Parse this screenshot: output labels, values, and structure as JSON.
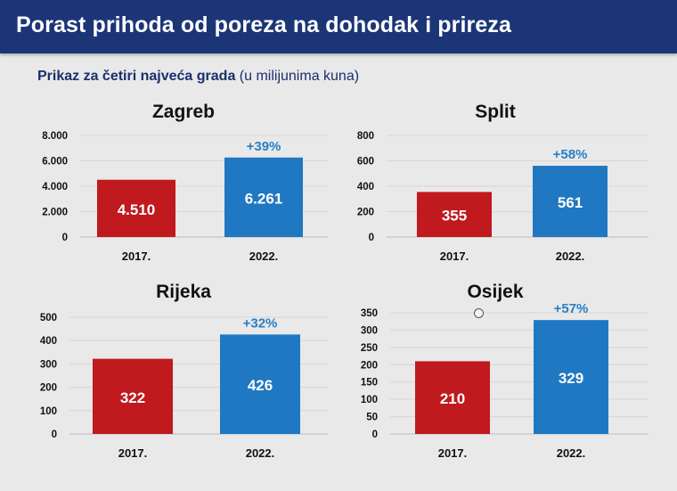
{
  "header": {
    "title": "Porast prihoda od poreza na dohodak i prireza"
  },
  "subtitle": {
    "bold": "Prikaz za četiri najveća grada",
    "normal": " (u milijunima kuna)"
  },
  "colors": {
    "header_bg": "#1b3577",
    "bar_2017": "#c0191e",
    "bar_2022": "#1f78c1",
    "growth_label": "#2a7fc4"
  },
  "chart_data": [
    {
      "type": "bar",
      "title": "Zagreb",
      "categories": [
        "2017.",
        "2022."
      ],
      "values": [
        4510,
        6261
      ],
      "value_labels": [
        "4.510",
        "6.261"
      ],
      "growth_label": "+39%",
      "yticks": [
        "0",
        "2.000",
        "4.000",
        "6.000",
        "8.000"
      ],
      "tick_values": [
        0,
        2000,
        4000,
        6000,
        8000
      ],
      "ylim": [
        0,
        8000
      ],
      "grid": true
    },
    {
      "type": "bar",
      "title": "Split",
      "categories": [
        "2017.",
        "2022."
      ],
      "values": [
        355,
        561
      ],
      "value_labels": [
        "355",
        "561"
      ],
      "growth_label": "+58%",
      "yticks": [
        "0",
        "200",
        "400",
        "600",
        "800"
      ],
      "tick_values": [
        0,
        200,
        400,
        600,
        800
      ],
      "ylim": [
        0,
        800
      ],
      "grid": true
    },
    {
      "type": "bar",
      "title": "Rijeka",
      "categories": [
        "2017.",
        "2022."
      ],
      "values": [
        322,
        426
      ],
      "value_labels": [
        "322",
        "426"
      ],
      "growth_label": "+32%",
      "yticks": [
        "0",
        "100",
        "200",
        "300",
        "400",
        "500"
      ],
      "tick_values": [
        0,
        100,
        200,
        300,
        400,
        500
      ],
      "ylim": [
        0,
        500
      ],
      "grid": true
    },
    {
      "type": "bar",
      "title": "Osijek",
      "categories": [
        "2017.",
        "2022."
      ],
      "values": [
        210,
        329
      ],
      "value_labels": [
        "210",
        "329"
      ],
      "growth_label": "+57%",
      "yticks": [
        "0",
        "50",
        "100",
        "150",
        "200",
        "250",
        "300",
        "350"
      ],
      "tick_values": [
        0,
        50,
        100,
        150,
        200,
        250,
        300,
        350
      ],
      "ylim": [
        0,
        350
      ],
      "grid": true
    }
  ]
}
